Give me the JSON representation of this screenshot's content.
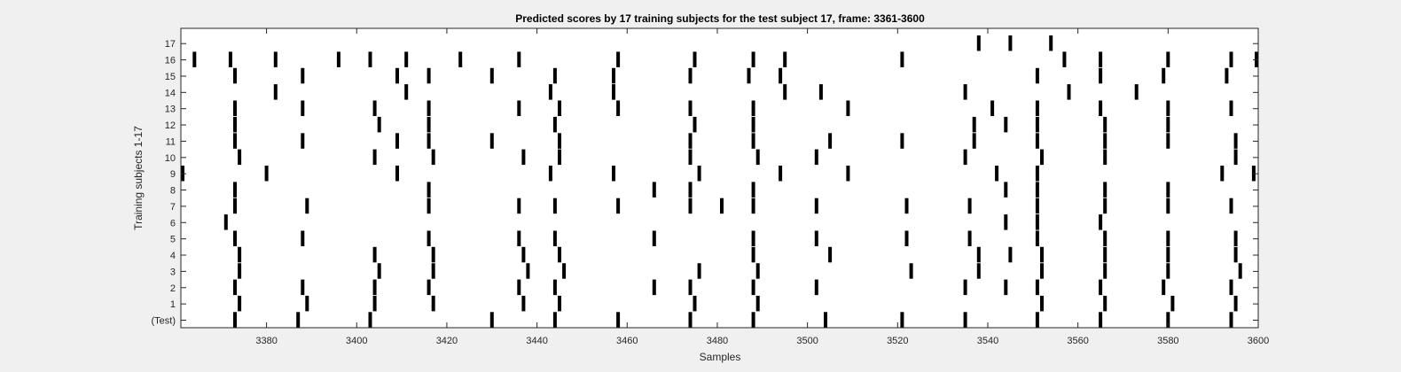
{
  "chart_data": {
    "type": "raster",
    "title": "Predicted scores by 17 training subjects for the test subject 17, frame: 3361-3600",
    "xlabel": "Samples",
    "ylabel": "Training subjects 1-17",
    "xlim": [
      3361,
      3600
    ],
    "xticks": [
      3380,
      3400,
      3420,
      3440,
      3460,
      3480,
      3500,
      3520,
      3540,
      3560,
      3580,
      3600
    ],
    "ylim": [
      0,
      17
    ],
    "y_tick_labels": [
      "(Test)",
      "1",
      "2",
      "3",
      "4",
      "5",
      "6",
      "7",
      "8",
      "9",
      "10",
      "11",
      "12",
      "13",
      "14",
      "15",
      "16",
      "17"
    ],
    "grid": false,
    "legend": "none",
    "colors": {
      "event": "#000000",
      "axes_bg": "#ffffff",
      "figure_bg": "#f0f0f0"
    },
    "rows": [
      {
        "label": "(Test)",
        "events": [
          3373,
          3387,
          3403,
          3430,
          3444,
          3458,
          3474,
          3488,
          3504,
          3521,
          3535,
          3551,
          3565,
          3580,
          3594
        ]
      },
      {
        "label": "1",
        "events": [
          3374,
          3389,
          3404,
          3417,
          3437,
          3445,
          3475,
          3489,
          3552,
          3566,
          3581,
          3595
        ]
      },
      {
        "label": "2",
        "events": [
          3373,
          3388,
          3404,
          3416,
          3436,
          3444,
          3466,
          3474,
          3488,
          3502,
          3535,
          3544,
          3551,
          3565,
          3579,
          3594
        ]
      },
      {
        "label": "3",
        "events": [
          3374,
          3405,
          3417,
          3438,
          3446,
          3476,
          3489,
          3523,
          3538,
          3552,
          3566,
          3580,
          3596
        ]
      },
      {
        "label": "4",
        "events": [
          3374,
          3404,
          3417,
          3437,
          3445,
          3488,
          3505,
          3538,
          3545,
          3552,
          3566,
          3580,
          3595
        ]
      },
      {
        "label": "5",
        "events": [
          3373,
          3388,
          3416,
          3436,
          3444,
          3466,
          3488,
          3502,
          3522,
          3536,
          3551,
          3566,
          3580,
          3595
        ]
      },
      {
        "label": "6",
        "events": [
          3371,
          3544,
          3551,
          3565
        ]
      },
      {
        "label": "7",
        "events": [
          3373,
          3389,
          3416,
          3436,
          3444,
          3458,
          3474,
          3481,
          3488,
          3502,
          3522,
          3536,
          3551,
          3566,
          3580,
          3594
        ]
      },
      {
        "label": "8",
        "events": [
          3373,
          3416,
          3466,
          3474,
          3488,
          3544,
          3551,
          3566,
          3580
        ]
      },
      {
        "label": "9",
        "events": [
          3361,
          3380,
          3409,
          3443,
          3457,
          3476,
          3494,
          3509,
          3542,
          3551,
          3592,
          3599
        ]
      },
      {
        "label": "10",
        "events": [
          3374,
          3404,
          3417,
          3437,
          3445,
          3474,
          3489,
          3502,
          3535,
          3552,
          3566,
          3595
        ]
      },
      {
        "label": "11",
        "events": [
          3373,
          3388,
          3409,
          3416,
          3430,
          3445,
          3474,
          3488,
          3505,
          3521,
          3537,
          3551,
          3566,
          3580,
          3595
        ]
      },
      {
        "label": "12",
        "events": [
          3373,
          3405,
          3416,
          3444,
          3475,
          3488,
          3537,
          3544,
          3551,
          3566,
          3580
        ]
      },
      {
        "label": "13",
        "events": [
          3373,
          3388,
          3404,
          3416,
          3436,
          3445,
          3458,
          3474,
          3488,
          3509,
          3541,
          3551,
          3565,
          3580,
          3594
        ]
      },
      {
        "label": "14",
        "events": [
          3382,
          3411,
          3443,
          3457,
          3495,
          3503,
          3535,
          3558,
          3573
        ]
      },
      {
        "label": "15",
        "events": [
          3373,
          3388,
          3409,
          3416,
          3430,
          3444,
          3457,
          3474,
          3487,
          3494,
          3551,
          3565,
          3579,
          3593
        ]
      },
      {
        "label": "16",
        "events": [
          3364,
          3372,
          3382,
          3396,
          3403,
          3411,
          3423,
          3436,
          3458,
          3475,
          3488,
          3495,
          3521,
          3557,
          3565,
          3580,
          3594,
          3600
        ]
      },
      {
        "label": "17",
        "events": [
          3538,
          3545,
          3554
        ]
      }
    ]
  }
}
